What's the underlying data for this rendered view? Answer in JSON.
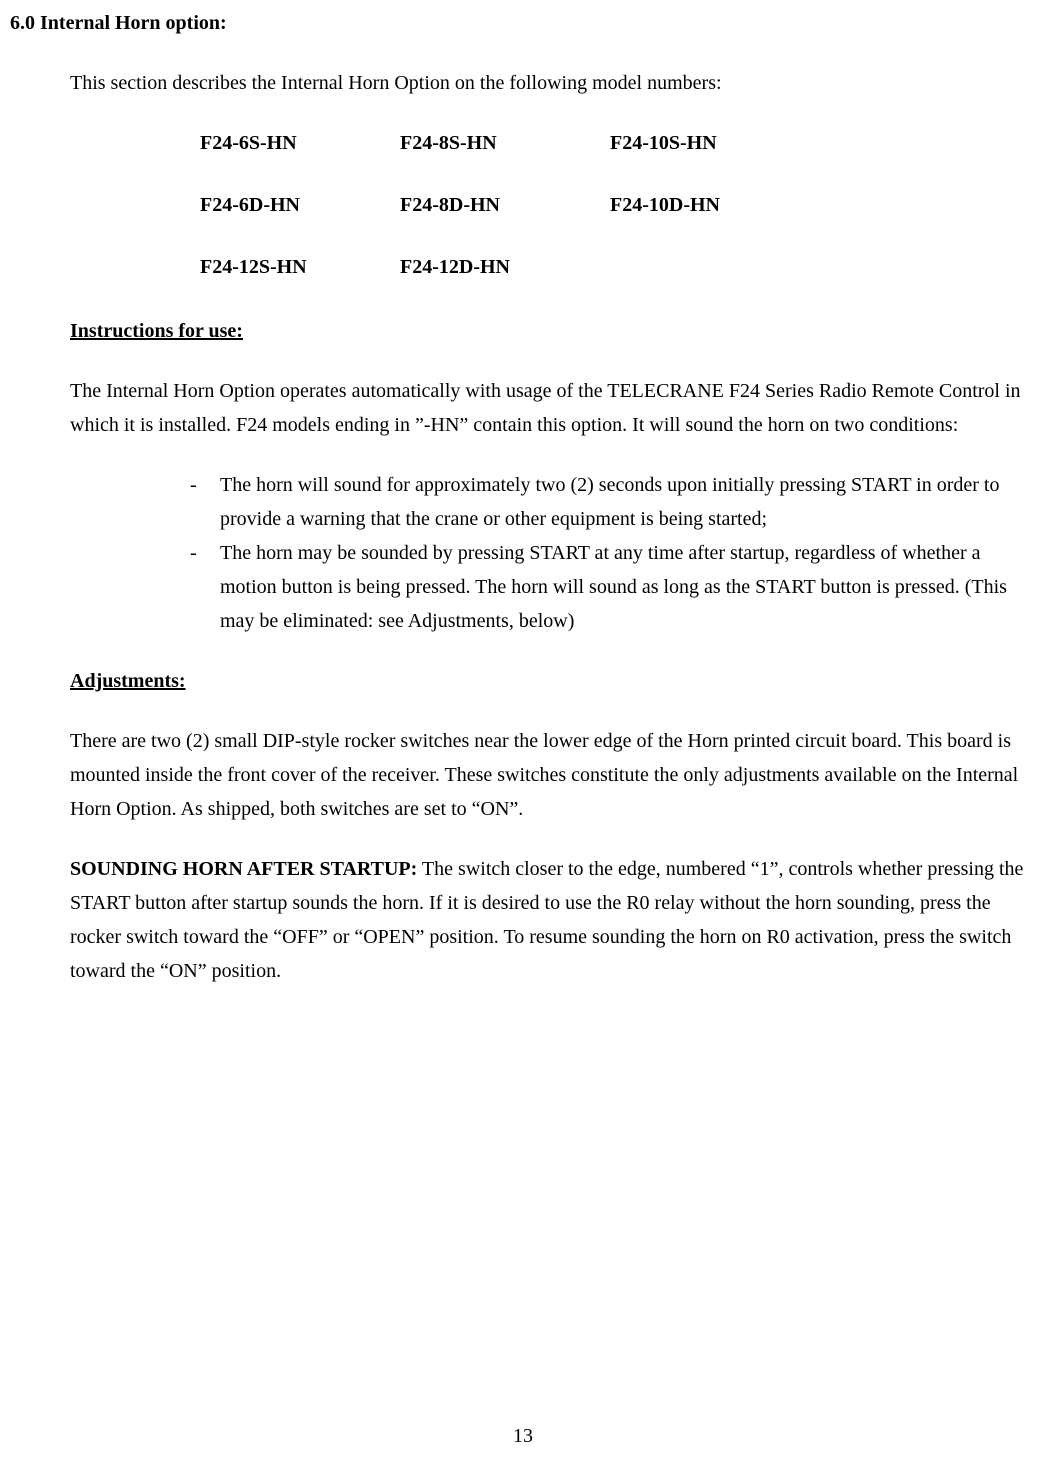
{
  "section_heading": "6.0 Internal Horn option:",
  "intro": "This section describes the Internal Horn Option on the following model numbers:",
  "models": {
    "row1": {
      "c1": "F24-6S-HN",
      "c2": "F24-8S-HN",
      "c3": "F24-10S-HN"
    },
    "row2": {
      "c1": "F24-6D-HN",
      "c2": "F24-8D-HN",
      "c3": "F24-10D-HN"
    },
    "row3": {
      "c1": "F24-12S-HN",
      "c2": "F24-12D-HN",
      "c3": ""
    }
  },
  "instructions_head": "Instructions for use:",
  "instructions_para": "The Internal Horn Option operates automatically with usage of the TELECRANE F24 Series Radio Remote Control in which it is installed.  F24 models ending in ”-HN” contain this option.  It will sound the horn on two conditions:",
  "bullets": {
    "dash": "-",
    "b1": "The horn will sound for approximately two (2) seconds upon initially pressing START in order to provide a warning that the crane or other equipment is being started;",
    "b2": "The horn may be sounded by pressing START at any time after startup, regardless of whether a motion button is being pressed.  The horn will sound as long as the START button is pressed.  (This may be eliminated: see Adjustments, below)"
  },
  "adjustments_head": "Adjustments:",
  "adjustments_para": "There are two (2) small DIP-style rocker switches near the lower edge of the Horn printed circuit board.  This board is mounted inside the front cover of the receiver.  These switches constitute the only adjustments available on the Internal Horn Option.  As shipped, both switches are set to “ON”.",
  "sounding_bold": "SOUNDING HORN AFTER STARTUP:",
  "sounding_rest": " The switch closer to the edge, numbered “1”, controls whether pressing the START button after startup sounds the horn.  If it is desired to use the R0 relay without the horn sounding, press the rocker switch toward the “OFF” or “OPEN” position.  To resume sounding the horn on R0 activation, press the switch toward the “ON” position.",
  "page_number": "13"
}
